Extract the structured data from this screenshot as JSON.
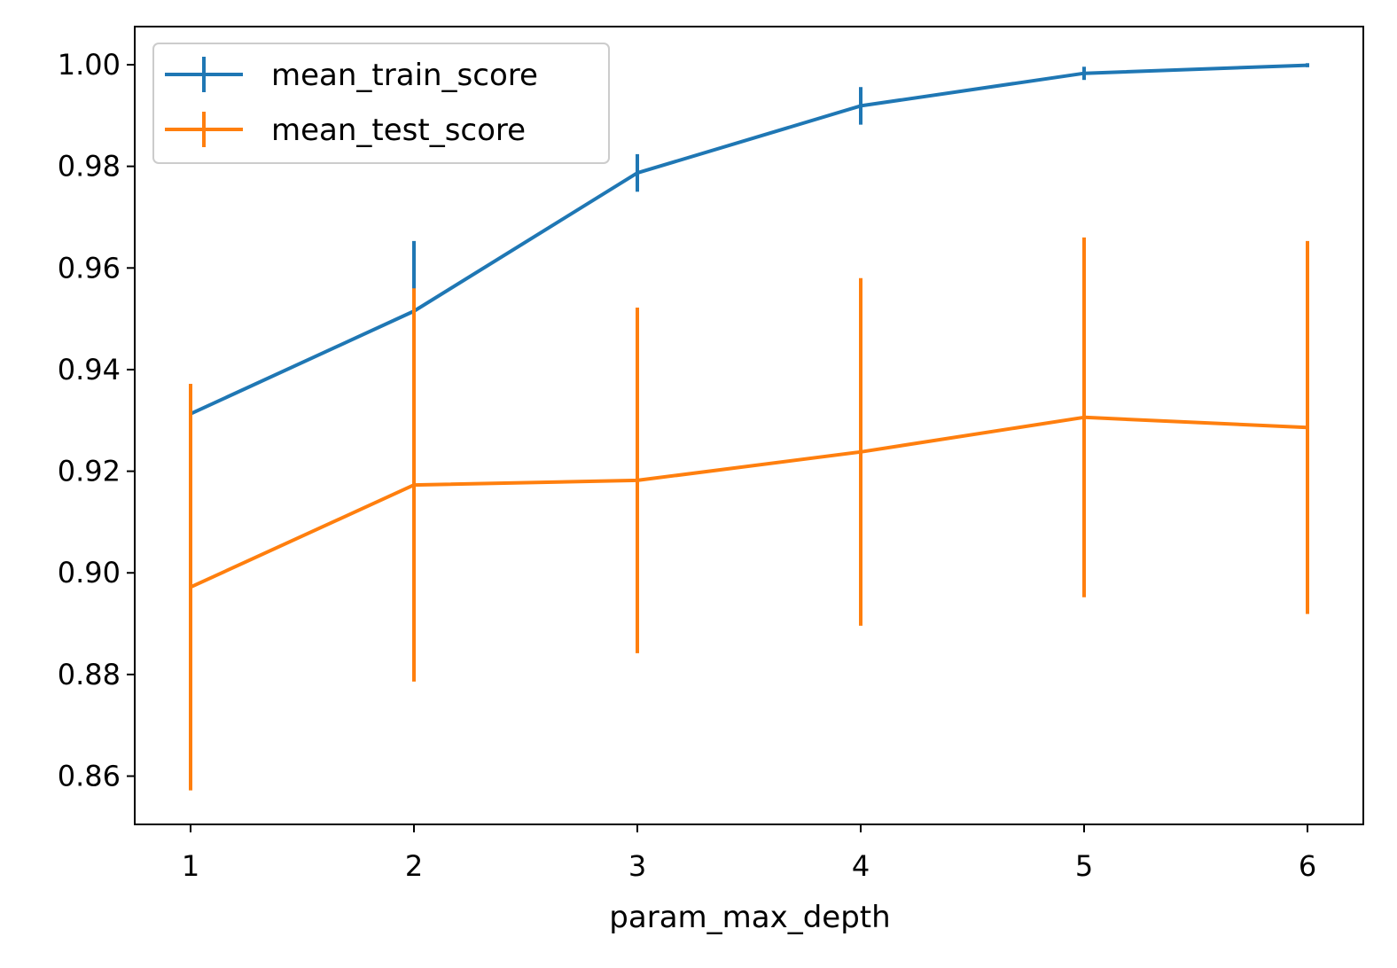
{
  "chart_data": {
    "type": "line",
    "title": "",
    "xlabel": "param_max_depth",
    "ylabel": "",
    "x": [
      1,
      2,
      3,
      4,
      5,
      6
    ],
    "xticks": [
      "1",
      "2",
      "3",
      "4",
      "5",
      "6"
    ],
    "xlim": [
      0.75,
      6.25
    ],
    "yticks": [
      "0.86",
      "0.88",
      "0.90",
      "0.92",
      "0.94",
      "0.96",
      "0.98",
      "1.00"
    ],
    "ylim": [
      0.8505,
      1.0075
    ],
    "legend_location": "upper-left",
    "series": [
      {
        "name": "mean_train_score",
        "color": "#1f77b4",
        "values": [
          0.9313,
          0.9515,
          0.9787,
          0.9919,
          0.9983,
          0.9999
        ],
        "errors": [
          0.0002,
          0.0138,
          0.0037,
          0.0037,
          0.0013,
          0.0004
        ]
      },
      {
        "name": "mean_test_score",
        "color": "#ff7f0e",
        "values": [
          0.8972,
          0.9173,
          0.9182,
          0.9238,
          0.9306,
          0.9286
        ],
        "errors": [
          0.04,
          0.0387,
          0.034,
          0.0342,
          0.0354,
          0.0367
        ]
      }
    ]
  }
}
